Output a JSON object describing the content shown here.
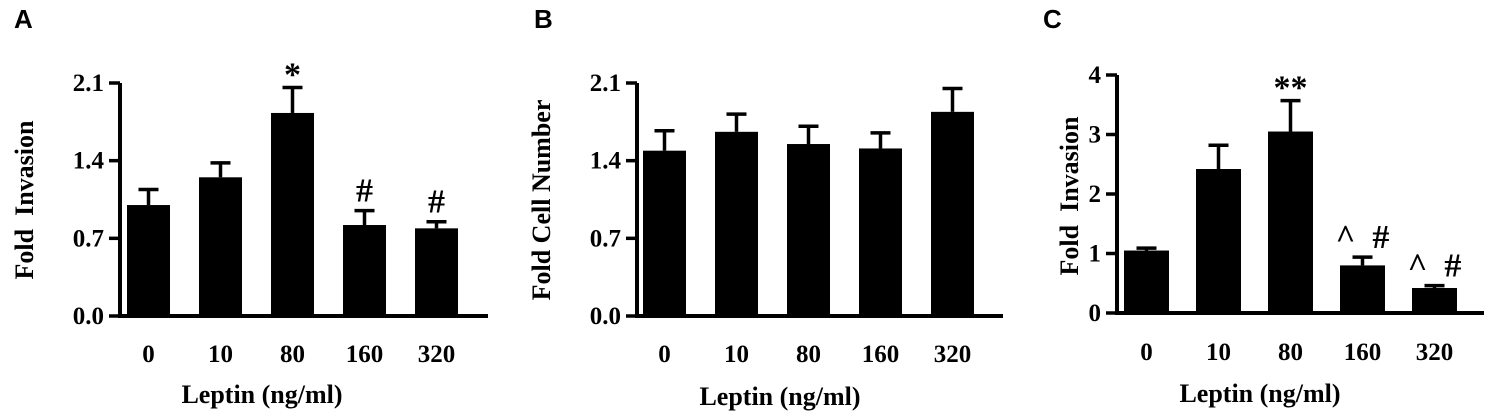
{
  "chart_data": [
    {
      "panel_label": "A",
      "type": "bar",
      "categories": [
        "0",
        "10",
        "80",
        "160",
        "320"
      ],
      "values": [
        1.0,
        1.25,
        1.83,
        0.82,
        0.79
      ],
      "errors": [
        0.14,
        0.13,
        0.23,
        0.13,
        0.06
      ],
      "annotations": [
        "",
        "",
        "*",
        "#",
        "#"
      ],
      "xlabel": "Leptin (ng/ml)",
      "ylabel": "Fold  Invasion",
      "ylim": [
        0,
        2.1
      ],
      "yticks": [
        "0.0",
        "0.7",
        "1.4",
        "2.1"
      ],
      "ytick_values": [
        0,
        0.7,
        1.4,
        2.1
      ],
      "grid": false,
      "bar_color": "#000000"
    },
    {
      "panel_label": "B",
      "type": "bar",
      "categories": [
        "0",
        "10",
        "80",
        "160",
        "320"
      ],
      "values": [
        1.49,
        1.66,
        1.55,
        1.51,
        1.84
      ],
      "errors": [
        0.18,
        0.16,
        0.16,
        0.14,
        0.21
      ],
      "annotations": [
        "",
        "",
        "",
        "",
        ""
      ],
      "xlabel": "Leptin (ng/ml)",
      "ylabel": "Fold Cell Number",
      "ylim": [
        0,
        2.1
      ],
      "yticks": [
        "0.0",
        "0.7",
        "1.4",
        "2.1"
      ],
      "ytick_values": [
        0,
        0.7,
        1.4,
        2.1
      ],
      "grid": false,
      "bar_color": "#000000"
    },
    {
      "panel_label": "C",
      "type": "bar",
      "categories": [
        "0",
        "10",
        "80",
        "160",
        "320"
      ],
      "values": [
        1.05,
        2.42,
        3.05,
        0.8,
        0.42
      ],
      "errors": [
        0.04,
        0.4,
        0.52,
        0.14,
        0.04
      ],
      "annotations": [
        "",
        "",
        "**",
        "^  #",
        "^  #"
      ],
      "xlabel": "Leptin (ng/ml)",
      "ylabel": "Fold  Invasion",
      "ylim": [
        0,
        4
      ],
      "yticks": [
        "0",
        "1",
        "2",
        "3",
        "4"
      ],
      "ytick_values": [
        0,
        1,
        2,
        3,
        4
      ],
      "grid": false,
      "bar_color": "#000000"
    }
  ]
}
